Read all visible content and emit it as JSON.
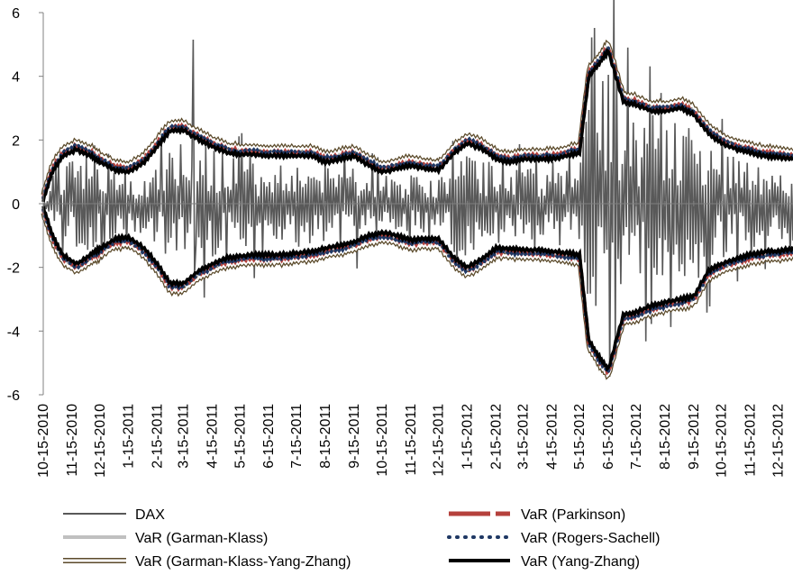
{
  "chart_data": {
    "type": "line",
    "title": "",
    "xlabel": "",
    "ylabel": "",
    "ylim": [
      -6,
      6
    ],
    "yticks": [
      6,
      4,
      2,
      0,
      -2,
      -4,
      -6
    ],
    "x_tick_labels": [
      "10-15-2010",
      "11-15-2010",
      "12-15-2010",
      "1-15-2011",
      "2-15-2011",
      "3-15-2011",
      "4-15-2011",
      "5-15-2011",
      "6-15-2011",
      "7-15-2011",
      "8-15-2011",
      "9-15-2011",
      "10-15-2011",
      "11-15-2011",
      "12-15-2011",
      "1-15-2012",
      "2-15-2012",
      "3-15-2012",
      "4-15-2012",
      "5-15-2012",
      "6-15-2012",
      "7-15-2012",
      "8-15-2012",
      "9-15-2012",
      "10-15-2012",
      "11-15-2012",
      "12-15-2012"
    ],
    "grid": false,
    "legend_position": "bottom",
    "series": [
      {
        "name": "DAX",
        "color": "#595959",
        "style": "solid-thin"
      },
      {
        "name": "VaR (Parkinson)",
        "color": "#b5413c",
        "style": "long-dash-thick"
      },
      {
        "name": "VaR (Garman-Klass)",
        "color": "#c0c0c0",
        "style": "solid-thick"
      },
      {
        "name": "VaR (Rogers-Sachell)",
        "color": "#1f3864",
        "style": "dotted-thick"
      },
      {
        "name": "VaR (Garman-Klass-Yang-Zhang)",
        "color": "#5b4a2a",
        "style": "double-line"
      },
      {
        "name": "VaR (Yang-Zhang)",
        "color": "#000000",
        "style": "solid-thick"
      }
    ],
    "var_envelope_upper": [
      [
        "10-15-2010",
        0.1
      ],
      [
        "10-25-2010",
        1.0
      ],
      [
        "11-5-2010",
        1.5
      ],
      [
        "11-20-2010",
        1.7
      ],
      [
        "12-5-2010",
        1.5
      ],
      [
        "12-15-2010",
        1.3
      ],
      [
        "1-1-2011",
        1.05
      ],
      [
        "1-15-2011",
        1.0
      ],
      [
        "2-1-2011",
        1.3
      ],
      [
        "2-15-2011",
        1.8
      ],
      [
        "3-1-2011",
        2.3
      ],
      [
        "3-15-2011",
        2.3
      ],
      [
        "4-1-2011",
        2.0
      ],
      [
        "4-15-2011",
        1.8
      ],
      [
        "5-1-2011",
        1.6
      ],
      [
        "5-15-2011",
        1.55
      ],
      [
        "6-1-2011",
        1.55
      ],
      [
        "6-15-2011",
        1.5
      ],
      [
        "7-1-2011",
        1.5
      ],
      [
        "7-15-2011",
        1.5
      ],
      [
        "8-1-2011",
        1.5
      ],
      [
        "8-15-2011",
        1.3
      ],
      [
        "9-1-2011",
        1.4
      ],
      [
        "9-15-2011",
        1.5
      ],
      [
        "10-1-2011",
        1.2
      ],
      [
        "10-15-2011",
        1.0
      ],
      [
        "11-1-2011",
        1.1
      ],
      [
        "11-15-2011",
        1.2
      ],
      [
        "12-1-2011",
        1.1
      ],
      [
        "12-15-2011",
        1.05
      ],
      [
        "1-1-2012",
        1.6
      ],
      [
        "1-15-2012",
        1.9
      ],
      [
        "2-1-2012",
        1.7
      ],
      [
        "2-15-2012",
        1.4
      ],
      [
        "3-1-2012",
        1.3
      ],
      [
        "3-15-2012",
        1.4
      ],
      [
        "4-1-2012",
        1.4
      ],
      [
        "4-15-2012",
        1.4
      ],
      [
        "5-1-2012",
        1.5
      ],
      [
        "5-15-2012",
        1.6
      ],
      [
        "5-25-2012",
        4.0
      ],
      [
        "6-5-2012",
        4.4
      ],
      [
        "6-15-2012",
        4.8
      ],
      [
        "7-1-2012",
        3.2
      ],
      [
        "7-15-2012",
        3.1
      ],
      [
        "8-1-2012",
        2.9
      ],
      [
        "8-15-2012",
        2.9
      ],
      [
        "9-1-2012",
        3.0
      ],
      [
        "9-15-2012",
        2.8
      ],
      [
        "10-1-2012",
        2.2
      ],
      [
        "10-15-2012",
        1.9
      ],
      [
        "11-1-2012",
        1.7
      ],
      [
        "11-15-2012",
        1.6
      ],
      [
        "12-1-2012",
        1.5
      ],
      [
        "12-15-2012",
        1.45
      ],
      [
        "12-31-2012",
        1.4
      ]
    ],
    "var_envelope_lower": [
      [
        "10-15-2010",
        -0.1
      ],
      [
        "10-25-2010",
        -1.0
      ],
      [
        "11-5-2010",
        -1.6
      ],
      [
        "11-20-2010",
        -1.9
      ],
      [
        "12-5-2010",
        -1.6
      ],
      [
        "12-15-2010",
        -1.4
      ],
      [
        "1-1-2011",
        -1.1
      ],
      [
        "1-15-2011",
        -1.05
      ],
      [
        "2-1-2011",
        -1.4
      ],
      [
        "2-15-2011",
        -1.9
      ],
      [
        "3-1-2011",
        -2.5
      ],
      [
        "3-15-2011",
        -2.5
      ],
      [
        "4-1-2011",
        -2.1
      ],
      [
        "4-15-2011",
        -1.9
      ],
      [
        "5-1-2011",
        -1.7
      ],
      [
        "5-15-2011",
        -1.65
      ],
      [
        "6-1-2011",
        -1.6
      ],
      [
        "6-15-2011",
        -1.6
      ],
      [
        "7-1-2011",
        -1.6
      ],
      [
        "7-15-2011",
        -1.55
      ],
      [
        "8-1-2011",
        -1.5
      ],
      [
        "8-15-2011",
        -1.4
      ],
      [
        "9-1-2011",
        -1.3
      ],
      [
        "9-15-2011",
        -1.2
      ],
      [
        "10-1-2011",
        -1.0
      ],
      [
        "10-15-2011",
        -0.9
      ],
      [
        "11-1-2011",
        -1.0
      ],
      [
        "11-15-2011",
        -1.15
      ],
      [
        "12-1-2011",
        -1.1
      ],
      [
        "12-15-2011",
        -1.1
      ],
      [
        "1-1-2012",
        -1.7
      ],
      [
        "1-15-2012",
        -2.0
      ],
      [
        "2-1-2012",
        -1.7
      ],
      [
        "2-15-2012",
        -1.4
      ],
      [
        "3-1-2012",
        -1.4
      ],
      [
        "3-15-2012",
        -1.45
      ],
      [
        "4-1-2012",
        -1.45
      ],
      [
        "4-15-2012",
        -1.5
      ],
      [
        "5-1-2012",
        -1.55
      ],
      [
        "5-15-2012",
        -1.6
      ],
      [
        "5-25-2012",
        -4.3
      ],
      [
        "6-5-2012",
        -4.8
      ],
      [
        "6-15-2012",
        -5.2
      ],
      [
        "7-1-2012",
        -3.5
      ],
      [
        "7-15-2012",
        -3.4
      ],
      [
        "8-1-2012",
        -3.2
      ],
      [
        "8-15-2012",
        -3.1
      ],
      [
        "9-1-2012",
        -3.0
      ],
      [
        "9-15-2012",
        -2.9
      ],
      [
        "10-1-2012",
        -2.1
      ],
      [
        "10-15-2012",
        -1.9
      ],
      [
        "11-1-2012",
        -1.7
      ],
      [
        "11-15-2012",
        -1.6
      ],
      [
        "12-1-2012",
        -1.5
      ],
      [
        "12-15-2012",
        -1.5
      ],
      [
        "12-31-2012",
        -1.4
      ]
    ],
    "dax_range_notes": "Thin DAX series oscillates within the VaR envelope with occasional spikes (about 5.2 near 2-2011, about 5.0 near 6-2012)."
  },
  "legend": {
    "dax": "DAX",
    "parkinson": "VaR (Parkinson)",
    "garman_klass": "VaR (Garman-Klass)",
    "rogers_sachell": "VaR (Rogers-Sachell)",
    "gkyz": "VaR (Garman-Klass-Yang-Zhang)",
    "yang_zhang": "VaR (Yang-Zhang)"
  }
}
